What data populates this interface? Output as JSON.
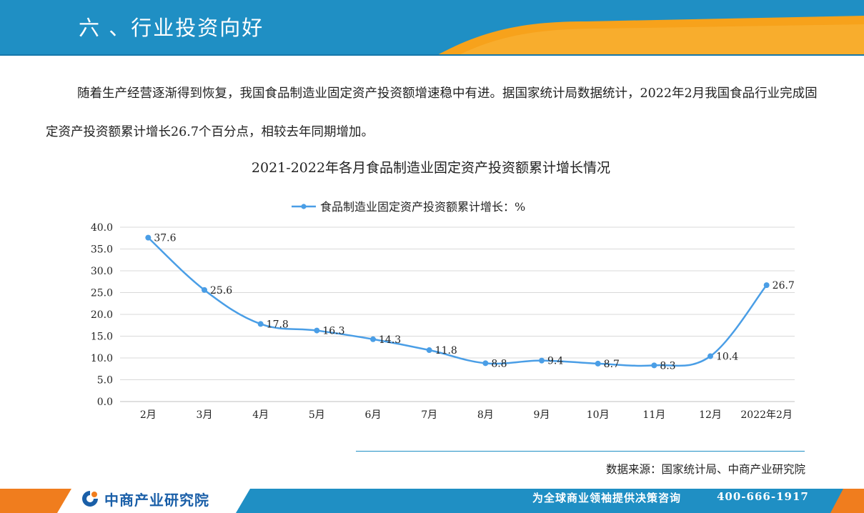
{
  "header": {
    "title": "六 、行业投资向好"
  },
  "intro": {
    "text": "随着生产经营逐渐得到恢复，我国食品制造业固定资产投资额增速稳中有进。据国家统计局数据统计，2022年2月我国食品行业完成固定资产投资额累计增长26.7个百分点，相较去年同期增加。"
  },
  "chart_data": {
    "type": "line",
    "title": "2021-2022年各月食品制造业固定资产投资额累计增长情况",
    "categories": [
      "2月",
      "3月",
      "4月",
      "5月",
      "6月",
      "7月",
      "8月",
      "9月",
      "10月",
      "11月",
      "12月",
      "2022年2月"
    ],
    "series": [
      {
        "name": "食品制造业固定资产投资额累计增长：%",
        "values": [
          37.6,
          25.6,
          17.8,
          16.3,
          14.3,
          11.8,
          8.8,
          9.4,
          8.7,
          8.3,
          10.4,
          26.7
        ],
        "color": "#4a9ee6"
      }
    ],
    "data_labels": [
      "37.6",
      "25.6",
      "17.8",
      "16.3",
      "14.3",
      "11.8",
      "8.8",
      "9.4",
      "8.7",
      "8.3",
      "10.4",
      "26.7"
    ],
    "ylim": [
      0,
      40
    ],
    "yticks": [
      "0.0",
      "5.0",
      "10.0",
      "15.0",
      "20.0",
      "25.0",
      "30.0",
      "35.0",
      "40.0"
    ],
    "grid": true,
    "legend_position": "top"
  },
  "source": {
    "text": "数据来源：国家统计局、中商产业研究院"
  },
  "footer": {
    "brand": "中商产业研究院",
    "slogan": "为全球商业领袖提供决策咨询",
    "phone": "400-666-1917"
  },
  "colors": {
    "header_blue": "#1f8fc4",
    "header_orange": "#f7a21b",
    "footer_blue": "#1f8fc4",
    "footer_orange": "#f07d1e",
    "series_line": "#4a9ee6",
    "grid": "#d9d9d9"
  }
}
